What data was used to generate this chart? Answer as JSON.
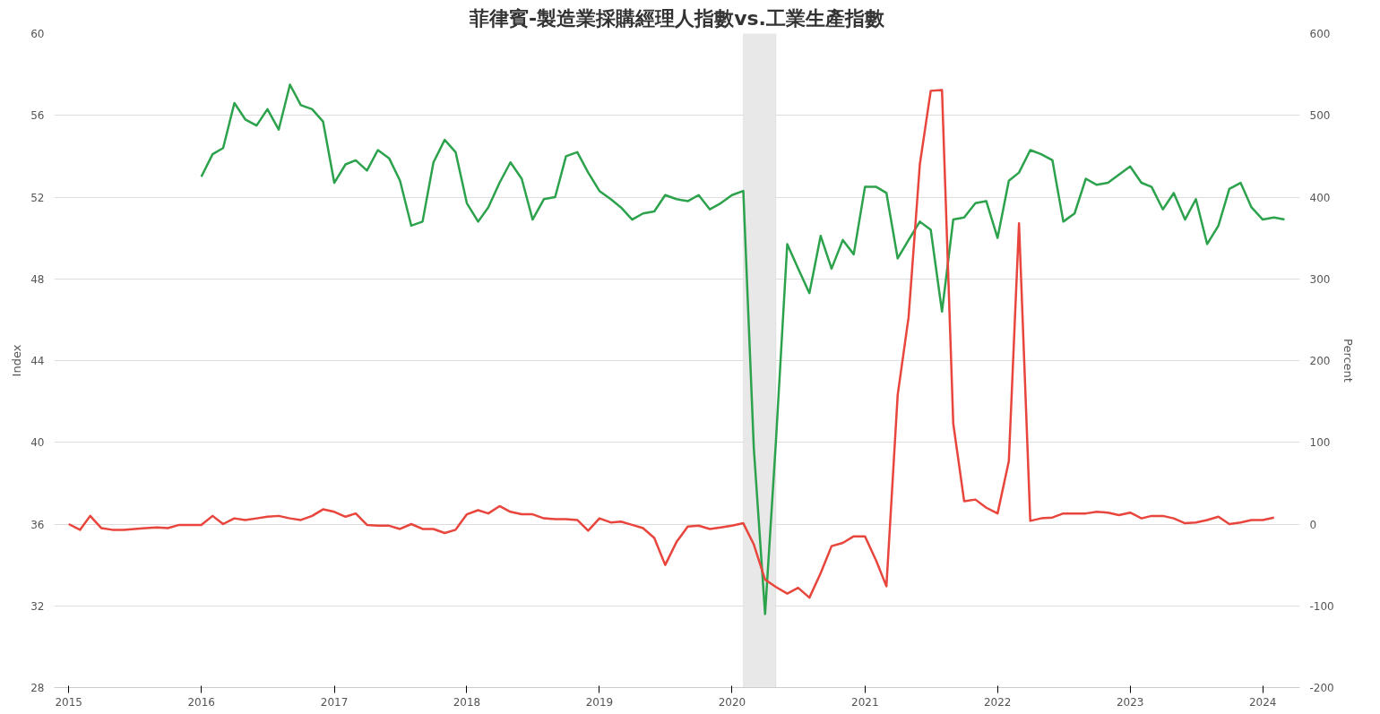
{
  "chart_data": {
    "type": "line",
    "title": "菲律賓-製造業採購經理人指數vs.工業生產指數",
    "ylabel": "Index",
    "y2label": "Percent",
    "xlim": [
      "2014-11-22",
      "2024-04-12"
    ],
    "xticks": [
      {
        "value": "2015-01-01",
        "label": "2015"
      },
      {
        "value": "2016-01-01",
        "label": "2016"
      },
      {
        "value": "2017-01-01",
        "label": "2017"
      },
      {
        "value": "2018-01-01",
        "label": "2018"
      },
      {
        "value": "2019-01-01",
        "label": "2019"
      },
      {
        "value": "2020-01-01",
        "label": "2020"
      },
      {
        "value": "2021-01-01",
        "label": "2021"
      },
      {
        "value": "2022-01-01",
        "label": "2022"
      },
      {
        "value": "2023-01-01",
        "label": "2023"
      },
      {
        "value": "2024-01-01",
        "label": "2024"
      }
    ],
    "ylim": [
      28,
      60
    ],
    "yticks": [
      28,
      32,
      36,
      40,
      44,
      48,
      52,
      56,
      60
    ],
    "y2lim": [
      -200,
      600
    ],
    "y2ticks": [
      -200,
      -100,
      0,
      100,
      200,
      300,
      400,
      500,
      600
    ],
    "grid": "y",
    "line_style": "solid",
    "bands": [
      {
        "axis": "x",
        "from": "2020-02",
        "to": "2020-05",
        "color": "#e8e8e8"
      }
    ],
    "series": [
      {
        "color": "#2ca24c",
        "x": [
          "2016-01",
          "2016-02",
          "2016-03",
          "2016-04",
          "2016-05",
          "2016-06",
          "2016-07",
          "2016-08",
          "2016-09",
          "2016-10",
          "2016-11",
          "2016-12",
          "2017-01",
          "2017-02",
          "2017-03",
          "2017-04",
          "2017-05",
          "2017-06",
          "2017-07",
          "2017-08",
          "2017-09",
          "2017-10",
          "2017-11",
          "2017-12",
          "2018-01",
          "2018-02",
          "2018-03",
          "2018-04",
          "2018-05",
          "2018-06",
          "2018-07",
          "2018-08",
          "2018-09",
          "2018-10",
          "2018-11",
          "2018-12",
          "2019-01",
          "2019-02",
          "2019-03",
          "2019-04",
          "2019-05",
          "2019-06",
          "2019-07",
          "2019-08",
          "2019-09",
          "2019-10",
          "2019-11",
          "2019-12",
          "2020-01",
          "2020-02",
          "2020-03",
          "2020-04",
          "2020-05",
          "2020-06",
          "2020-07",
          "2020-08",
          "2020-09",
          "2020-10",
          "2020-11",
          "2020-12",
          "2021-01",
          "2021-02",
          "2021-03",
          "2021-04",
          "2021-05",
          "2021-06",
          "2021-07",
          "2021-08",
          "2021-09",
          "2021-10",
          "2021-11",
          "2021-12",
          "2022-01",
          "2022-02",
          "2022-03",
          "2022-04",
          "2022-05",
          "2022-06",
          "2022-07",
          "2022-08",
          "2022-09",
          "2022-10",
          "2022-11",
          "2022-12",
          "2023-01",
          "2023-02",
          "2023-03",
          "2023-04",
          "2023-05",
          "2023-06",
          "2023-07",
          "2023-08",
          "2023-09",
          "2023-10",
          "2023-11",
          "2023-12",
          "2024-01",
          "2024-02",
          "2024-03"
        ],
        "values": [
          53.0,
          54.1,
          54.4,
          56.6,
          55.8,
          55.5,
          56.3,
          55.3,
          57.5,
          56.5,
          56.3,
          55.7,
          52.7,
          53.6,
          53.8,
          53.3,
          54.3,
          53.9,
          52.8,
          50.6,
          50.8,
          53.7,
          54.8,
          54.2,
          51.7,
          50.8,
          51.5,
          52.7,
          53.7,
          52.9,
          50.9,
          51.9,
          52.0,
          54.0,
          54.2,
          53.2,
          52.3,
          51.9,
          51.5,
          50.9,
          51.2,
          51.3,
          52.1,
          51.9,
          51.8,
          52.1,
          51.4,
          51.7,
          52.1,
          52.3,
          39.7,
          31.6,
          40.1,
          49.7,
          48.5,
          47.3,
          50.1,
          48.5,
          49.9,
          49.2,
          52.5,
          52.5,
          52.2,
          49.0,
          49.9,
          50.8,
          50.4,
          46.4,
          50.9,
          51.0,
          51.7,
          51.8,
          50.0,
          52.8,
          53.2,
          54.3,
          54.1,
          53.8,
          50.8,
          51.2,
          52.9,
          52.6,
          52.7,
          53.1,
          53.5,
          52.7,
          52.5,
          51.4,
          52.2,
          50.9,
          51.9,
          49.7,
          50.6,
          52.4,
          52.7,
          51.5,
          50.9,
          51.0,
          50.9
        ]
      },
      {
        "color": "#e8453c",
        "axis": "y2",
        "x": [
          "2015-01",
          "2015-02",
          "2015-03",
          "2015-04",
          "2015-05",
          "2015-06",
          "2015-07",
          "2015-08",
          "2015-09",
          "2015-10",
          "2015-11",
          "2015-12",
          "2016-01",
          "2016-02",
          "2016-03",
          "2016-04",
          "2016-05",
          "2016-06",
          "2016-07",
          "2016-08",
          "2016-09",
          "2016-10",
          "2016-11",
          "2016-12",
          "2017-01",
          "2017-02",
          "2017-03",
          "2017-04",
          "2017-05",
          "2017-06",
          "2017-07",
          "2017-08",
          "2017-09",
          "2017-10",
          "2017-11",
          "2017-12",
          "2018-01",
          "2018-02",
          "2018-03",
          "2018-04",
          "2018-05",
          "2018-06",
          "2018-07",
          "2018-08",
          "2018-09",
          "2018-10",
          "2018-11",
          "2018-12",
          "2019-01",
          "2019-02",
          "2019-03",
          "2019-04",
          "2019-05",
          "2019-06",
          "2019-07",
          "2019-08",
          "2019-09",
          "2019-10",
          "2019-11",
          "2019-12",
          "2020-01",
          "2020-02",
          "2020-03",
          "2020-04",
          "2020-05",
          "2020-06",
          "2020-07",
          "2020-08",
          "2020-09",
          "2020-10",
          "2020-11",
          "2020-12",
          "2021-01",
          "2021-02",
          "2021-03",
          "2021-04",
          "2021-05",
          "2021-06",
          "2021-07",
          "2021-08",
          "2021-09",
          "2021-10",
          "2021-11",
          "2021-12",
          "2022-01",
          "2022-02",
          "2022-03",
          "2022-04",
          "2022-05",
          "2022-06",
          "2022-07",
          "2022-08",
          "2022-09",
          "2022-10",
          "2022-11",
          "2022-12",
          "2023-01",
          "2023-02",
          "2023-03",
          "2023-04",
          "2023-05",
          "2023-06",
          "2023-07",
          "2023-08",
          "2023-09",
          "2023-10",
          "2023-11",
          "2023-12",
          "2024-01",
          "2024-02"
        ],
        "values": [
          0,
          -7,
          10,
          -5,
          -7,
          -7,
          -6,
          -5,
          -4,
          -5,
          -1,
          -1,
          -1,
          10,
          0,
          7,
          5,
          7,
          9,
          10,
          7,
          5,
          10,
          18,
          15,
          9,
          13,
          -1,
          -2,
          -2,
          -6,
          0,
          -6,
          -6,
          -11,
          -7,
          12,
          17,
          13,
          22,
          15,
          12,
          12,
          7,
          6,
          6,
          5,
          -8,
          7,
          2,
          3,
          -1,
          -5,
          -17,
          -50,
          -22,
          -3,
          -2,
          -6,
          -4,
          -2,
          1,
          -25,
          -68,
          -77,
          -85,
          -78,
          -90,
          -60,
          -27,
          -23,
          -15,
          -15,
          -45,
          -76,
          158,
          253,
          440,
          530,
          531,
          123,
          28,
          30,
          20,
          13,
          77,
          368,
          4,
          7,
          8,
          13,
          13,
          13,
          15,
          14,
          11,
          14,
          7,
          10,
          10,
          7,
          1,
          2,
          5,
          9,
          0,
          2,
          5,
          5,
          8
        ]
      }
    ]
  }
}
